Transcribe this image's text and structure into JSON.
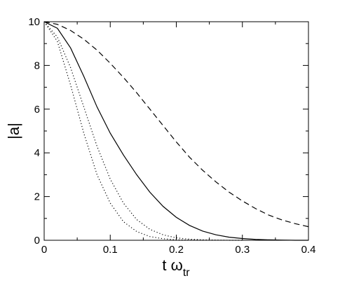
{
  "chart_data": {
    "type": "line",
    "xlabel": {
      "main": "t ω",
      "sub": "tr"
    },
    "ylabel": "|a|",
    "xlim": [
      0,
      0.4
    ],
    "ylim": [
      0,
      10
    ],
    "xticks": [
      0,
      0.1,
      0.2,
      0.3,
      0.4
    ],
    "xtick_labels": [
      "0",
      "0.1",
      "0.2",
      "0.3",
      "0.4"
    ],
    "yticks": [
      0,
      2,
      4,
      6,
      8,
      10
    ],
    "ytick_labels": [
      "0",
      "2",
      "4",
      "6",
      "8",
      "10"
    ],
    "grid": false,
    "series": [
      {
        "style": "dashed",
        "color": "#000000",
        "x": [
          0,
          0.02,
          0.04,
          0.06,
          0.08,
          0.1,
          0.12,
          0.14,
          0.16,
          0.18,
          0.2,
          0.22,
          0.24,
          0.26,
          0.28,
          0.3,
          0.32,
          0.34,
          0.36,
          0.38,
          0.4
        ],
        "y": [
          10.0,
          9.88,
          9.6,
          9.2,
          8.7,
          8.1,
          7.45,
          6.75,
          6.0,
          5.25,
          4.5,
          3.8,
          3.2,
          2.67,
          2.2,
          1.8,
          1.45,
          1.15,
          0.93,
          0.76,
          0.62
        ]
      },
      {
        "style": "solid",
        "color": "#000000",
        "x": [
          0,
          0.02,
          0.04,
          0.06,
          0.08,
          0.1,
          0.12,
          0.14,
          0.16,
          0.18,
          0.2,
          0.22,
          0.24,
          0.26,
          0.28,
          0.3,
          0.32,
          0.34,
          0.36,
          0.38,
          0.4
        ],
        "y": [
          10.0,
          9.7,
          8.8,
          7.5,
          6.1,
          4.9,
          3.9,
          3.0,
          2.2,
          1.55,
          1.05,
          0.68,
          0.42,
          0.25,
          0.14,
          0.08,
          0.04,
          0.02,
          0.01,
          0.0,
          0.0
        ]
      },
      {
        "style": "dotted",
        "color": "#000000",
        "x": [
          0,
          0.02,
          0.04,
          0.06,
          0.08,
          0.1,
          0.12,
          0.14,
          0.16,
          0.18,
          0.2,
          0.22,
          0.24,
          0.26,
          0.28,
          0.3
        ],
        "y": [
          10.0,
          9.3,
          7.9,
          6.1,
          4.3,
          2.8,
          1.7,
          0.95,
          0.5,
          0.25,
          0.11,
          0.05,
          0.02,
          0.01,
          0.0,
          0.0
        ]
      },
      {
        "style": "dotted",
        "color": "#000000",
        "x": [
          0,
          0.02,
          0.04,
          0.06,
          0.08,
          0.1,
          0.12,
          0.14,
          0.16,
          0.18,
          0.2,
          0.22,
          0.24
        ],
        "y": [
          10.0,
          9.1,
          7.1,
          4.9,
          3.0,
          1.7,
          0.85,
          0.4,
          0.17,
          0.07,
          0.02,
          0.01,
          0.0
        ]
      }
    ]
  }
}
